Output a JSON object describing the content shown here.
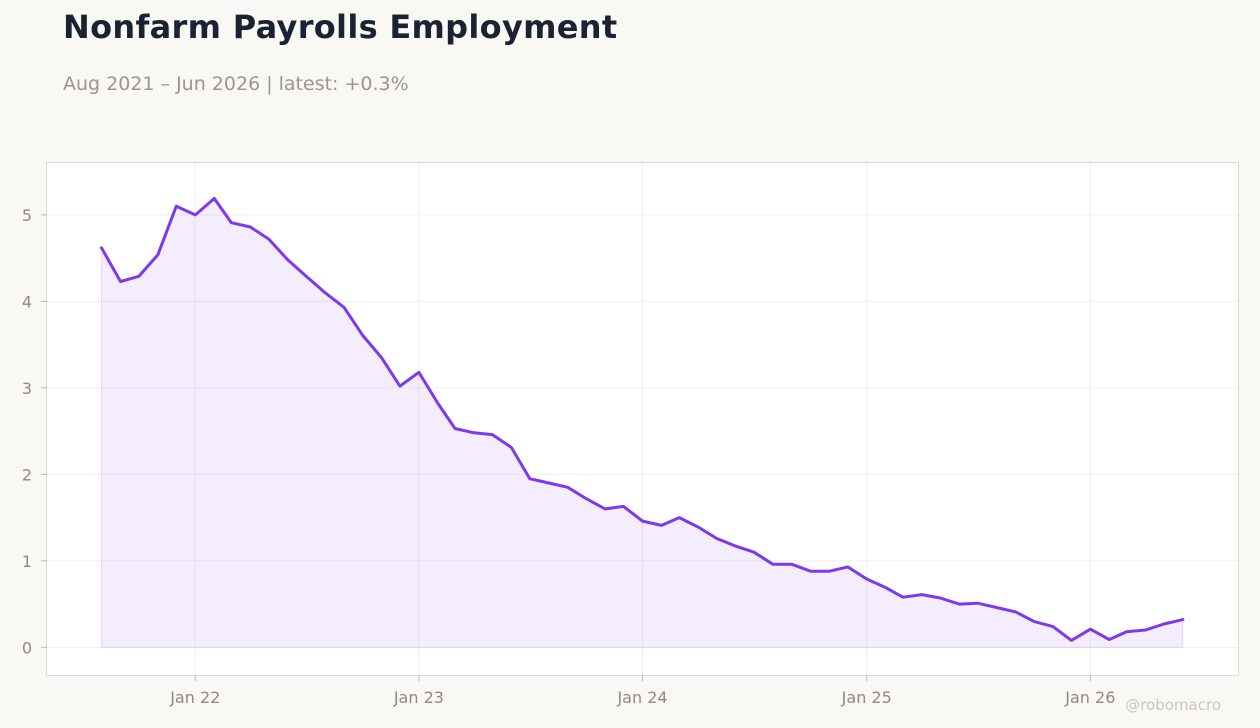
{
  "header": {
    "title": "Nonfarm Payrolls Employment",
    "subtitle": "Aug 2021 – Jun 2026 | latest: +0.3%"
  },
  "watermark": "@robomacro",
  "colors": {
    "line": "#7c3aed",
    "fill": "#7c3aed",
    "plot_bg": "#ffffff",
    "page_bg": "#f9f8f5",
    "grid": "#efefef"
  },
  "chart_data": {
    "type": "area",
    "title": "Nonfarm Payrolls Employment",
    "subtitle": "Aug 2021 – Jun 2026 | latest: +0.3%",
    "xlabel": "",
    "ylabel": "",
    "x_start": "2021-08",
    "x_end": "2026-06",
    "x_ticks": [
      {
        "date": "2022-01",
        "label": "Jan 22"
      },
      {
        "date": "2023-01",
        "label": "Jan 23"
      },
      {
        "date": "2024-01",
        "label": "Jan 24"
      },
      {
        "date": "2025-01",
        "label": "Jan 25"
      },
      {
        "date": "2026-01",
        "label": "Jan 26"
      }
    ],
    "y_ticks": [
      0,
      1,
      2,
      3,
      4,
      5
    ],
    "ylim": [
      -0.32,
      5.6
    ],
    "xlim": [
      "2021-05-04",
      "2026-08-30"
    ],
    "grid": true,
    "legend": "none",
    "series": [
      {
        "x": [
          "2021-08",
          "2021-09",
          "2021-10",
          "2021-11",
          "2021-12",
          "2022-01",
          "2022-02",
          "2022-03",
          "2022-04",
          "2022-05",
          "2022-06",
          "2022-07",
          "2022-08",
          "2022-09",
          "2022-10",
          "2022-11",
          "2022-12",
          "2023-01",
          "2023-02",
          "2023-03",
          "2023-04",
          "2023-05",
          "2023-06",
          "2023-07",
          "2023-08",
          "2023-09",
          "2023-10",
          "2023-11",
          "2023-12",
          "2024-01",
          "2024-02",
          "2024-03",
          "2024-04",
          "2024-05",
          "2024-06",
          "2024-07",
          "2024-08",
          "2024-09",
          "2024-10",
          "2024-11",
          "2024-12",
          "2025-01",
          "2025-02",
          "2025-03",
          "2025-04",
          "2025-05",
          "2025-06",
          "2025-07",
          "2025-08",
          "2025-09",
          "2025-10",
          "2025-11",
          "2025-12",
          "2026-01",
          "2026-02",
          "2026-03",
          "2026-04",
          "2026-05",
          "2026-06"
        ],
        "values": [
          4.62,
          4.23,
          4.29,
          4.54,
          5.1,
          5.0,
          5.19,
          4.91,
          4.86,
          4.72,
          4.48,
          4.29,
          4.1,
          3.93,
          3.61,
          3.35,
          3.02,
          3.18,
          2.82,
          2.53,
          2.48,
          2.46,
          2.31,
          1.95,
          1.9,
          1.85,
          1.72,
          1.6,
          1.63,
          1.46,
          1.41,
          1.5,
          1.39,
          1.26,
          1.17,
          1.1,
          0.96,
          0.96,
          0.88,
          0.88,
          0.93,
          0.79,
          0.69,
          0.58,
          0.61,
          0.57,
          0.5,
          0.51,
          0.46,
          0.41,
          0.3,
          0.24,
          0.08,
          0.21,
          0.09,
          0.18,
          0.2,
          0.27,
          0.32
        ]
      }
    ]
  }
}
